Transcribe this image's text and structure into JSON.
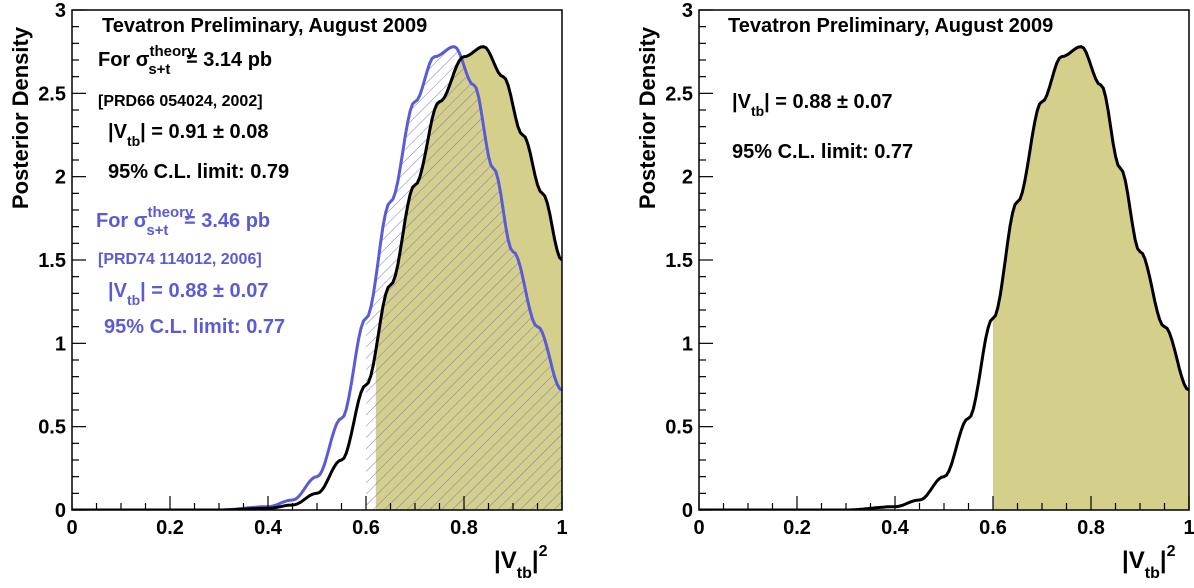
{
  "chart_data": [
    {
      "type": "area",
      "title": "Tevatron Preliminary, August 2009",
      "xlabel": "|V_tb|^2",
      "ylabel": "Posterior Density",
      "xlim": [
        0,
        1
      ],
      "ylim": [
        0,
        3
      ],
      "xticks": [
        "0",
        "0.2",
        "0.4",
        "0.6",
        "0.8",
        "1"
      ],
      "yticks": [
        "0",
        "0.5",
        "1",
        "1.5",
        "2",
        "2.5",
        "3"
      ],
      "colors": {
        "curve_black": "#000000",
        "curve_blue": "#5b5bd6",
        "fill_olive": "#d4cf8a",
        "hatch_blue": "#7a7ad6"
      },
      "annotations": {
        "black_header": "For σ",
        "black_sup": "theory",
        "black_sub": "s+t",
        "black_value": " = 3.14 pb",
        "black_ref": "[PRD66 054024, 2002]",
        "black_vtb_label": "|V",
        "black_vtb_sub": "tb",
        "black_vtb_value": "| = 0.91 ± 0.08",
        "black_limit": "95% C.L. limit: 0.79",
        "blue_header": "For σ",
        "blue_sup": "theory",
        "blue_sub": "s+t",
        "blue_value": " = 3.46 pb",
        "blue_ref": "[PRD74 114012, 2006]",
        "blue_vtb_label": "|V",
        "blue_vtb_sub": "tb",
        "blue_vtb_value": "| = 0.88 ± 0.07",
        "blue_limit": "95% C.L. limit: 0.77"
      },
      "series": [
        {
          "style": "black-line-olive-fill",
          "fill_from_x": 0.62,
          "x": [
            0,
            0.3,
            0.4,
            0.45,
            0.5,
            0.55,
            0.6,
            0.65,
            0.7,
            0.75,
            0.8,
            0.84,
            0.88,
            0.92,
            0.96,
            1.0
          ],
          "y": [
            0,
            0,
            0.01,
            0.03,
            0.1,
            0.3,
            0.75,
            1.35,
            1.95,
            2.45,
            2.72,
            2.78,
            2.6,
            2.25,
            1.9,
            1.5
          ]
        },
        {
          "style": "blue-line-hatched-fill",
          "fill_from_x": 0.6,
          "x": [
            0,
            0.3,
            0.4,
            0.45,
            0.5,
            0.55,
            0.6,
            0.65,
            0.7,
            0.74,
            0.78,
            0.82,
            0.86,
            0.9,
            0.95,
            1.0
          ],
          "y": [
            0,
            0,
            0.02,
            0.06,
            0.2,
            0.55,
            1.15,
            1.85,
            2.45,
            2.72,
            2.78,
            2.55,
            2.05,
            1.55,
            1.1,
            0.72
          ]
        }
      ]
    },
    {
      "type": "area",
      "title": "Tevatron Preliminary, August 2009",
      "xlabel": "|V_tb|^2",
      "ylabel": "Posterior Density",
      "xlim": [
        0,
        1
      ],
      "ylim": [
        0,
        3
      ],
      "xticks": [
        "0",
        "0.2",
        "0.4",
        "0.6",
        "0.8",
        "1"
      ],
      "yticks": [
        "0",
        "0.5",
        "1",
        "1.5",
        "2",
        "2.5",
        "3"
      ],
      "colors": {
        "curve_black": "#000000",
        "fill_olive": "#d4cf8a"
      },
      "annotations": {
        "vtb_label": "|V",
        "vtb_sub": "tb",
        "vtb_value": "| = 0.88 ± 0.07",
        "limit": "95% C.L. limit: 0.77"
      },
      "series": [
        {
          "style": "black-line-olive-fill",
          "fill_from_x": 0.6,
          "x": [
            0,
            0.3,
            0.4,
            0.45,
            0.5,
            0.55,
            0.6,
            0.65,
            0.7,
            0.74,
            0.78,
            0.82,
            0.86,
            0.9,
            0.95,
            1.0
          ],
          "y": [
            0,
            0,
            0.02,
            0.06,
            0.2,
            0.55,
            1.15,
            1.85,
            2.45,
            2.72,
            2.78,
            2.55,
            2.05,
            1.55,
            1.1,
            0.72
          ]
        }
      ]
    }
  ]
}
